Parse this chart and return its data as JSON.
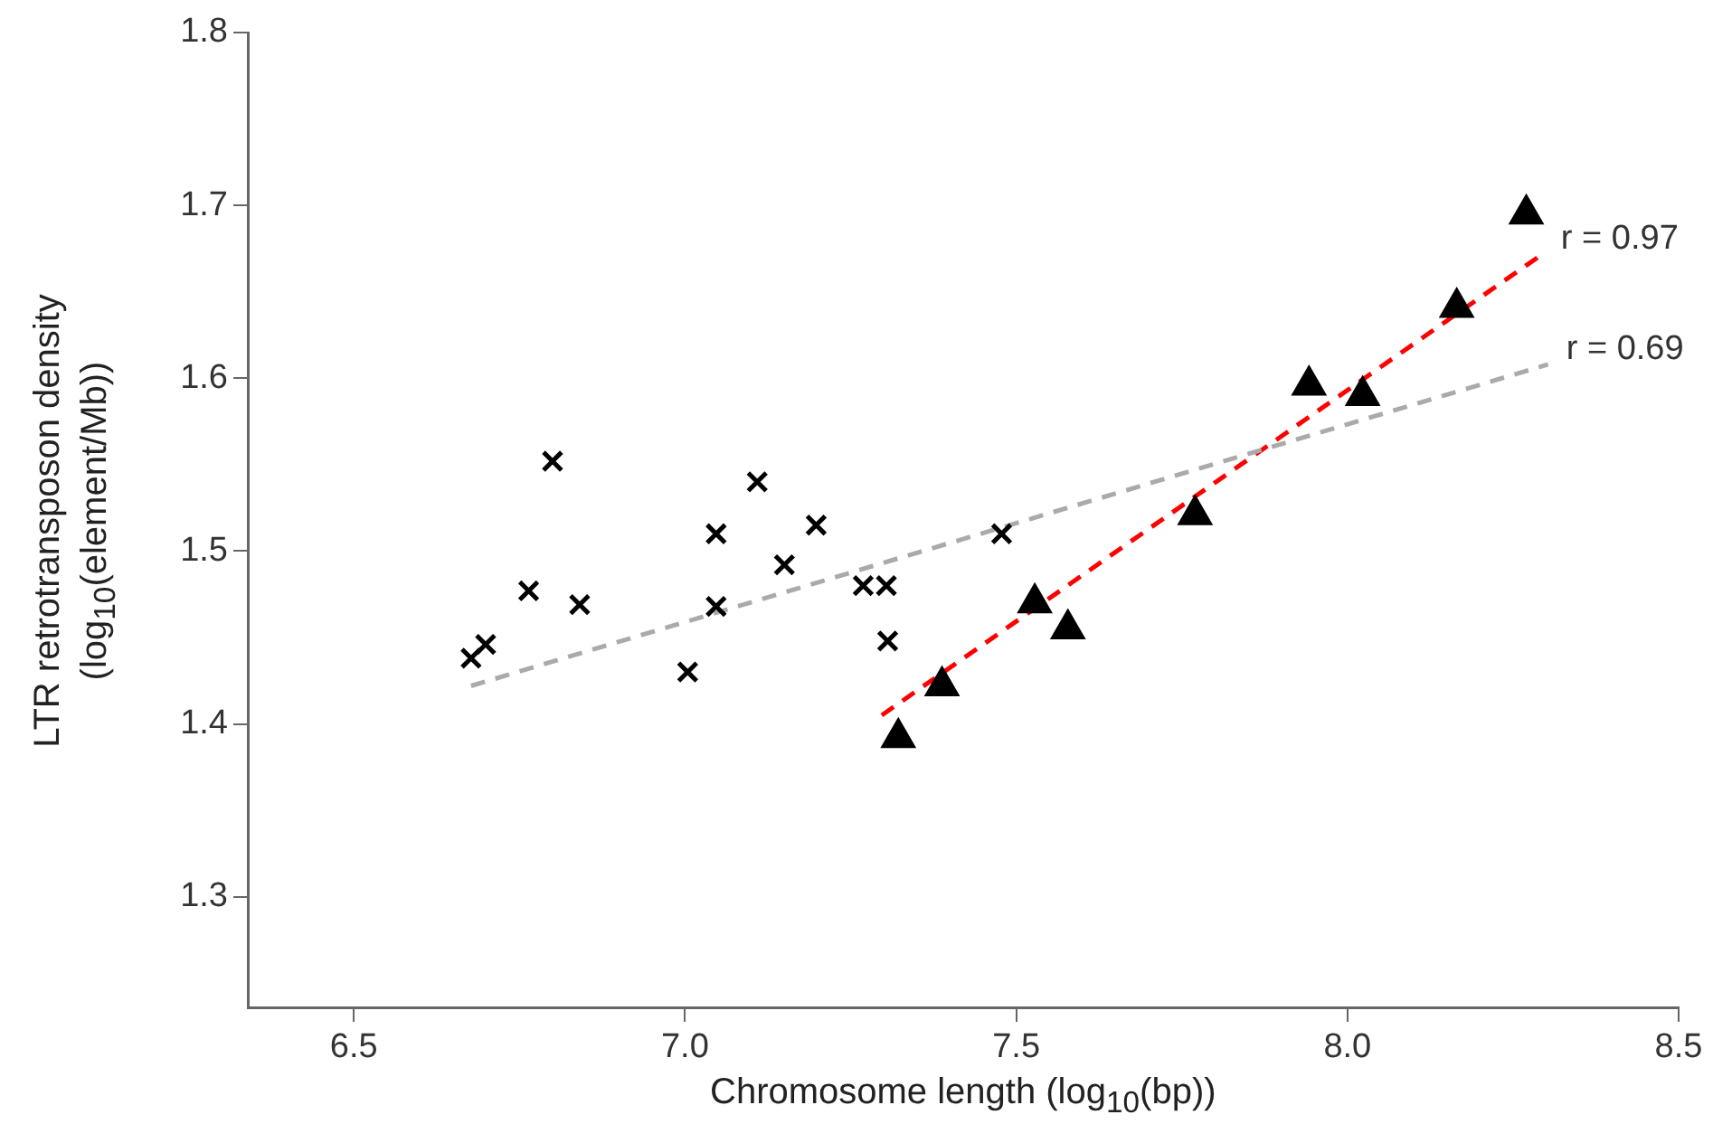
{
  "chart_data": {
    "type": "scatter",
    "xlabel": "Chromosome length (log$_{10}$(bp))",
    "ylabel": "LTR retrotransposon density\n(log$_{10}$(element/Mb))",
    "xlim": [
      6.34,
      8.5
    ],
    "ylim": [
      1.236,
      1.8
    ],
    "xticks": [
      6.5,
      {
        "value": 7,
        "label": "7.0"
      },
      7.5,
      {
        "value": 8,
        "label": "8.0"
      },
      8.5
    ],
    "yticks": [
      1.3,
      1.4,
      1.5,
      1.6,
      1.7,
      1.8
    ],
    "grid": false,
    "legend": false,
    "series": [
      {
        "marker": "cross",
        "color": "#000000",
        "x": [
          6.677,
          6.699,
          6.764,
          6.8,
          6.841,
          7.004,
          7.047,
          7.047,
          7.109,
          7.15,
          7.198,
          7.269,
          7.304,
          7.306,
          7.478
        ],
        "values": [
          1.438,
          1.446,
          1.477,
          1.552,
          1.469,
          1.43,
          1.51,
          1.468,
          1.54,
          1.492,
          1.515,
          1.48,
          1.48,
          1.448,
          1.51
        ]
      },
      {
        "marker": "triangle",
        "color": "#000000",
        "x": [
          7.322,
          7.388,
          7.528,
          7.578,
          7.77,
          7.942,
          8.023,
          8.165,
          8.27
        ],
        "values": [
          1.392,
          1.422,
          1.47,
          1.455,
          1.521,
          1.596,
          1.59,
          1.641,
          1.695
        ]
      },
      {
        "type": "line",
        "marker": "none",
        "line_style": "dashed",
        "color": "#aaaaaa",
        "x": [
          6.677,
          8.303
        ],
        "values": [
          1.422,
          1.608
        ]
      },
      {
        "type": "line",
        "marker": "none",
        "line_style": "dashed",
        "color": "#ff0000",
        "x": [
          7.297,
          8.295
        ],
        "values": [
          1.405,
          1.672
        ]
      }
    ],
    "annotations": [
      {
        "text": "r = 0.97",
        "x": 8.295,
        "y": 1.672
      },
      {
        "text": "r = 0.69",
        "x": 8.303,
        "y": 1.608
      }
    ]
  }
}
